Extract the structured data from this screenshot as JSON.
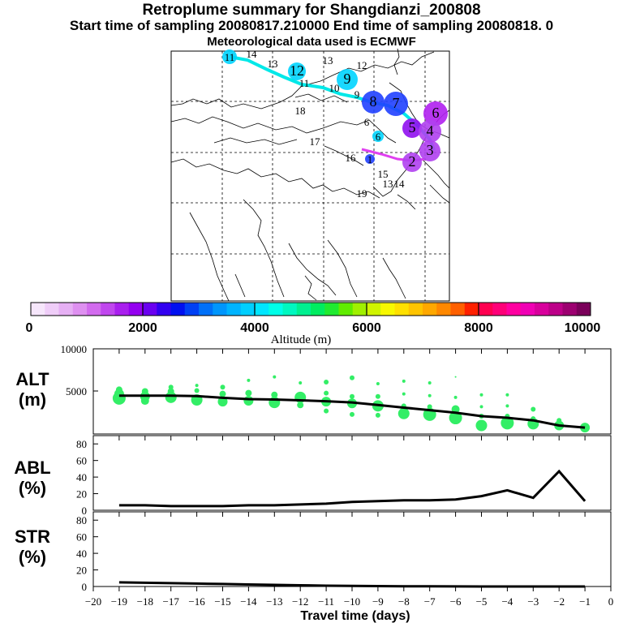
{
  "header": {
    "title": "Retroplume summary for Shangdianzi_200808",
    "sampling_line": "Start time of sampling 20080817.210000     End time of sampling 20080818.     0",
    "met_line": "Meteorological data used is ECMWF"
  },
  "colorbar": {
    "label": "Altitude (m)",
    "tick_labels": [
      "0",
      "2000",
      "4000",
      "6000",
      "8000",
      "10000"
    ],
    "colors": [
      "#f6e6fb",
      "#efcdf8",
      "#e6b0f4",
      "#de90f0",
      "#d26bee",
      "#c047ee",
      "#a91fee",
      "#9400f0",
      "#6a00f0",
      "#3200f0",
      "#0010f0",
      "#0040f4",
      "#0070f8",
      "#0096fc",
      "#00b4ff",
      "#00cfff",
      "#00e6ff",
      "#00ffe8",
      "#00f8c0",
      "#00f090",
      "#00ec60",
      "#20ea30",
      "#60ec00",
      "#a0f000",
      "#d0f400",
      "#f8f800",
      "#ffe000",
      "#ffc400",
      "#ffa800",
      "#ff8800",
      "#ff6000",
      "#ff2000",
      "#ff0050",
      "#ff0078",
      "#ff00a0",
      "#f000b4",
      "#d8009c",
      "#bc0088",
      "#9c0070",
      "#7a005a"
    ]
  },
  "map": {
    "labels": [
      {
        "text": "11",
        "color": "#00d4ff"
      },
      {
        "text": "14",
        "color": "#00d4ff"
      },
      {
        "text": "13",
        "color": "#00d4ff"
      },
      {
        "text": "12",
        "color": "#00d4ff"
      },
      {
        "text": "13",
        "color": "#00d4ff"
      },
      {
        "text": "12",
        "color": "#00d4ff"
      },
      {
        "text": "11",
        "color": "#00d4ff"
      },
      {
        "text": "10",
        "color": "#00d4ff"
      },
      {
        "text": "9",
        "color": "#00d4ff"
      },
      {
        "text": "9",
        "color": "#2040ff"
      },
      {
        "text": "8",
        "color": "#2040ff"
      },
      {
        "text": "7",
        "color": "#2040ff"
      },
      {
        "text": "6",
        "color": "#b020f0"
      },
      {
        "text": "5",
        "color": "#9010f0"
      },
      {
        "text": "4",
        "color": "#b040f0"
      },
      {
        "text": "3",
        "color": "#b040f0"
      },
      {
        "text": "2",
        "color": "#b040f0"
      },
      {
        "text": "18",
        "color": "#00e8d0"
      },
      {
        "text": "17",
        "color": "#00e8d0"
      },
      {
        "text": "16",
        "color": "#00d4ff"
      },
      {
        "text": "15",
        "color": "#00d4ff"
      },
      {
        "text": "19",
        "color": "#00e8d0"
      },
      {
        "text": "6",
        "color": "#00d4ff"
      },
      {
        "text": "6",
        "color": "#00ff80"
      },
      {
        "text": "1",
        "color": "#2040ff"
      },
      {
        "text": "14",
        "color": "#00d4ff"
      },
      {
        "text": "13",
        "color": "#00d4ff"
      }
    ]
  },
  "chart_data": [
    {
      "type": "scatter",
      "panel": "ALT",
      "ylabel_line1": "ALT",
      "ylabel_line2": "(m)",
      "ylim": [
        0,
        10000
      ],
      "yticks": [
        "10000",
        "5000"
      ],
      "xlim": [
        -20,
        0
      ],
      "series": [
        {
          "name": "mean altitude",
          "kind": "line",
          "x": [
            -19,
            -18,
            -17,
            -16,
            -15,
            -14,
            -13,
            -12,
            -11,
            -10,
            -9,
            -8,
            -7,
            -6,
            -5,
            -4,
            -3,
            -2,
            -1
          ],
          "y": [
            4500,
            4500,
            4500,
            4450,
            4250,
            4100,
            4050,
            3950,
            3850,
            3700,
            3400,
            3100,
            2800,
            2500,
            2100,
            1900,
            1600,
            1000,
            750
          ]
        },
        {
          "name": "cluster altitudes",
          "kind": "points",
          "points": [
            [
              -19,
              4200,
              8
            ],
            [
              -19,
              4700,
              6
            ],
            [
              -19,
              5200,
              4
            ],
            [
              -18,
              3900,
              5
            ],
            [
              -18,
              4400,
              6
            ],
            [
              -18,
              5000,
              4
            ],
            [
              -17,
              4300,
              7
            ],
            [
              -17,
              5000,
              4
            ],
            [
              -17,
              5500,
              3
            ],
            [
              -16,
              4000,
              7
            ],
            [
              -16,
              5100,
              3
            ],
            [
              -16,
              5700,
              2
            ],
            [
              -15,
              3800,
              6
            ],
            [
              -15,
              4700,
              4
            ],
            [
              -15,
              5500,
              3
            ],
            [
              -14,
              3900,
              6
            ],
            [
              -14,
              4800,
              4
            ],
            [
              -14,
              6300,
              2
            ],
            [
              -13,
              3700,
              7
            ],
            [
              -13,
              4600,
              4
            ],
            [
              -13,
              6700,
              2
            ],
            [
              -12,
              4300,
              7
            ],
            [
              -12,
              3400,
              4
            ],
            [
              -12,
              6000,
              2
            ],
            [
              -11,
              3800,
              6
            ],
            [
              -11,
              2700,
              3
            ],
            [
              -11,
              4800,
              3
            ],
            [
              -11,
              6100,
              3
            ],
            [
              -10,
              3600,
              6
            ],
            [
              -10,
              2300,
              3
            ],
            [
              -10,
              4400,
              3
            ],
            [
              -10,
              6600,
              3
            ],
            [
              -9,
              3300,
              7
            ],
            [
              -9,
              2200,
              3
            ],
            [
              -9,
              4400,
              3
            ],
            [
              -9,
              5900,
              2
            ],
            [
              -8,
              2400,
              7
            ],
            [
              -8,
              3300,
              3
            ],
            [
              -8,
              4700,
              2
            ],
            [
              -8,
              6200,
              2
            ],
            [
              -7,
              2300,
              8
            ],
            [
              -7,
              3200,
              3
            ],
            [
              -7,
              4500,
              2
            ],
            [
              -7,
              6000,
              2
            ],
            [
              -6,
              1900,
              8
            ],
            [
              -6,
              2900,
              5
            ],
            [
              -6,
              4300,
              2
            ],
            [
              -6,
              6700,
              1
            ],
            [
              -5,
              1000,
              7
            ],
            [
              -5,
              2100,
              3
            ],
            [
              -5,
              3200,
              2
            ],
            [
              -5,
              4600,
              2
            ],
            [
              -4,
              1300,
              8
            ],
            [
              -4,
              2100,
              3
            ],
            [
              -4,
              3300,
              2
            ],
            [
              -4,
              4600,
              2
            ],
            [
              -3,
              1200,
              7
            ],
            [
              -3,
              1800,
              3
            ],
            [
              -3,
              2900,
              3
            ],
            [
              -2,
              1000,
              6
            ],
            [
              -2,
              1600,
              3
            ],
            [
              -1,
              750,
              6
            ]
          ]
        }
      ]
    },
    {
      "type": "line",
      "panel": "ABL",
      "ylabel_line1": "ABL",
      "ylabel_line2": "(%)",
      "ylim": [
        0,
        90
      ],
      "yticks": [
        "80",
        "60",
        "40",
        "20",
        "0"
      ],
      "xlim": [
        -20,
        0
      ],
      "x": [
        -19,
        -18,
        -17,
        -16,
        -15,
        -14,
        -13,
        -12,
        -11,
        -10,
        -9,
        -8,
        -7,
        -6,
        -5,
        -4,
        -3,
        -2,
        -1
      ],
      "y": [
        6,
        6,
        5,
        5,
        5,
        6,
        6,
        7,
        8,
        10,
        11,
        12,
        12,
        13,
        17,
        24,
        15,
        47,
        11
      ]
    },
    {
      "type": "line",
      "panel": "STR",
      "ylabel_line1": "STR",
      "ylabel_line2": "(%)",
      "ylim": [
        0,
        90
      ],
      "yticks": [
        "80",
        "60",
        "40",
        "20",
        "0"
      ],
      "xlim": [
        -20,
        0
      ],
      "x": [
        -19,
        -18,
        -17,
        -16,
        -15,
        -14,
        -13,
        -12,
        -11,
        -10,
        -9,
        -8,
        -7,
        -6,
        -5,
        -4,
        -3,
        -2,
        -1
      ],
      "y": [
        5,
        4.5,
        4,
        3.5,
        3,
        2.5,
        2,
        1.5,
        1,
        0.7,
        0.5,
        0.3,
        0.2,
        0.1,
        0,
        0,
        0,
        0,
        0
      ]
    }
  ],
  "xaxis": {
    "title": "Travel time (days)",
    "tick_labels": [
      "−20",
      "−19",
      "−18",
      "−17",
      "−16",
      "−15",
      "−14",
      "−13",
      "−12",
      "−11",
      "−10",
      "−9",
      "−8",
      "−7",
      "−6",
      "−5",
      "−4",
      "−3",
      "−2",
      "−1",
      "0"
    ]
  }
}
